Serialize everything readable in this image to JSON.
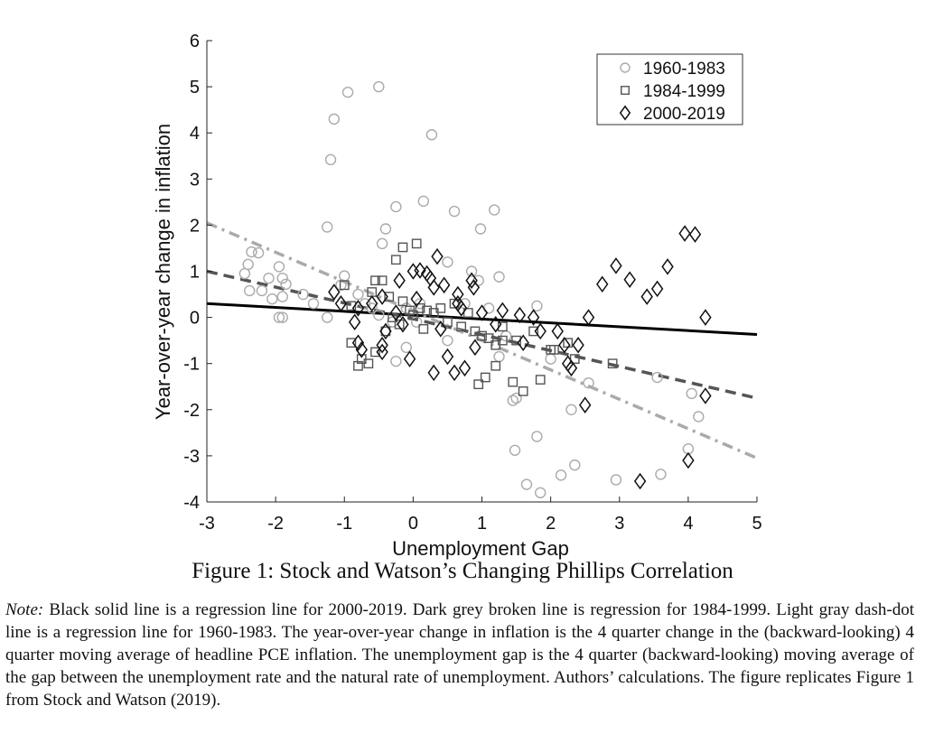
{
  "chart_data": {
    "type": "scatter",
    "title": "",
    "xlabel": "Unemployment Gap",
    "ylabel": "Year-over-year change in inflation",
    "xlim": [
      -3,
      5
    ],
    "ylim": [
      -4,
      6
    ],
    "xticks": [
      "-3",
      "-2",
      "-1",
      "0",
      "1",
      "2",
      "3",
      "4",
      "5"
    ],
    "yticks": [
      "-4",
      "-3",
      "-2",
      "-1",
      "0",
      "1",
      "2",
      "3",
      "4",
      "5",
      "6"
    ],
    "grid": false,
    "legend_position": "top-right",
    "series": [
      {
        "name": "1960-1983",
        "marker": "circle",
        "color": "#aaaaaa",
        "points": [
          [
            -0.5,
            5.0
          ],
          [
            -0.95,
            4.88
          ],
          [
            -1.15,
            4.3
          ],
          [
            -1.2,
            3.42
          ],
          [
            0.27,
            3.96
          ],
          [
            -1.25,
            1.96
          ],
          [
            -0.25,
            2.4
          ],
          [
            0.15,
            2.52
          ],
          [
            0.6,
            2.3
          ],
          [
            1.18,
            2.33
          ],
          [
            0.98,
            1.92
          ],
          [
            -0.4,
            1.92
          ],
          [
            -0.45,
            1.6
          ],
          [
            -2.4,
            1.15
          ],
          [
            -2.35,
            1.42
          ],
          [
            -2.25,
            1.4
          ],
          [
            -1.95,
            1.1
          ],
          [
            -1.9,
            0.85
          ],
          [
            -2.1,
            0.85
          ],
          [
            -2.45,
            0.95
          ],
          [
            -2.2,
            0.58
          ],
          [
            -2.38,
            0.58
          ],
          [
            -1.85,
            0.72
          ],
          [
            -1.9,
            0.45
          ],
          [
            -2.05,
            0.4
          ],
          [
            -1.6,
            0.5
          ],
          [
            -1.45,
            0.3
          ],
          [
            -1.0,
            0.9
          ],
          [
            -1.05,
            0.7
          ],
          [
            -0.8,
            0.5
          ],
          [
            -0.7,
            0.3
          ],
          [
            -1.95,
            0.0
          ],
          [
            -1.9,
            0.0
          ],
          [
            -1.25,
            0.0
          ],
          [
            -0.6,
            0.2
          ],
          [
            -0.5,
            0.05
          ],
          [
            -0.3,
            -0.1
          ],
          [
            -0.1,
            0.2
          ],
          [
            0.05,
            -0.1
          ],
          [
            0.1,
            0.3
          ],
          [
            0.5,
            1.2
          ],
          [
            0.85,
            1.0
          ],
          [
            0.95,
            0.8
          ],
          [
            0.75,
            0.3
          ],
          [
            1.1,
            0.2
          ],
          [
            1.25,
            0.88
          ],
          [
            -0.25,
            -0.95
          ],
          [
            -0.1,
            -0.65
          ],
          [
            0.5,
            -0.5
          ],
          [
            1.35,
            -0.4
          ],
          [
            1.8,
            0.25
          ],
          [
            2.0,
            -0.9
          ],
          [
            1.25,
            -0.85
          ],
          [
            1.45,
            -1.8
          ],
          [
            1.5,
            -1.75
          ],
          [
            1.48,
            -2.88
          ],
          [
            1.8,
            -2.58
          ],
          [
            2.3,
            -2.0
          ],
          [
            2.55,
            -1.42
          ],
          [
            3.55,
            -1.3
          ],
          [
            4.05,
            -1.65
          ],
          [
            4.15,
            -2.15
          ],
          [
            4.0,
            -2.85
          ],
          [
            3.6,
            -3.4
          ],
          [
            2.35,
            -3.2
          ],
          [
            2.15,
            -3.42
          ],
          [
            1.65,
            -3.62
          ],
          [
            1.85,
            -3.8
          ],
          [
            2.95,
            -3.52
          ]
        ]
      },
      {
        "name": "1984-1999",
        "marker": "square",
        "color": "#555555",
        "points": [
          [
            0.05,
            1.6
          ],
          [
            -0.15,
            1.52
          ],
          [
            -0.25,
            1.25
          ],
          [
            -0.55,
            0.8
          ],
          [
            -0.45,
            0.8
          ],
          [
            -0.9,
            0.25
          ],
          [
            -1.0,
            0.7
          ],
          [
            -0.6,
            0.55
          ],
          [
            -0.35,
            0.45
          ],
          [
            -0.15,
            0.35
          ],
          [
            0.1,
            0.2
          ],
          [
            0.3,
            0.1
          ],
          [
            0.5,
            -0.1
          ],
          [
            0.7,
            -0.2
          ],
          [
            0.9,
            -0.3
          ],
          [
            1.1,
            -0.45
          ],
          [
            1.3,
            -0.5
          ],
          [
            1.5,
            -0.5
          ],
          [
            1.75,
            -0.3
          ],
          [
            2.0,
            -0.7
          ],
          [
            2.25,
            -0.55
          ],
          [
            2.9,
            -1.0
          ],
          [
            -0.75,
            -0.9
          ],
          [
            -0.8,
            -1.05
          ],
          [
            -0.65,
            -1.0
          ],
          [
            -0.55,
            -0.75
          ],
          [
            -0.9,
            -0.55
          ],
          [
            -0.4,
            -0.3
          ],
          [
            -0.2,
            -0.15
          ],
          [
            0.0,
            0.05
          ],
          [
            0.2,
            0.15
          ],
          [
            0.4,
            0.2
          ],
          [
            0.6,
            0.3
          ],
          [
            0.8,
            0.1
          ],
          [
            1.0,
            -0.4
          ],
          [
            1.2,
            -0.6
          ],
          [
            1.05,
            -1.3
          ],
          [
            0.95,
            -1.45
          ],
          [
            1.2,
            -1.05
          ],
          [
            1.6,
            -1.6
          ],
          [
            1.45,
            -1.4
          ],
          [
            1.85,
            -1.35
          ],
          [
            2.05,
            -0.7
          ],
          [
            2.35,
            -0.9
          ],
          [
            1.3,
            -0.2
          ],
          [
            0.15,
            -0.25
          ],
          [
            -0.05,
            0.15
          ],
          [
            -0.3,
            0.0
          ]
        ]
      },
      {
        "name": "2000-2019",
        "marker": "diamond",
        "color": "#111111",
        "points": [
          [
            0.0,
            1.0
          ],
          [
            0.1,
            1.02
          ],
          [
            0.2,
            0.95
          ],
          [
            0.35,
            1.32
          ],
          [
            0.25,
            0.85
          ],
          [
            0.45,
            0.7
          ],
          [
            0.65,
            0.5
          ],
          [
            0.85,
            0.8
          ],
          [
            0.88,
            0.65
          ],
          [
            -0.2,
            0.8
          ],
          [
            -0.45,
            0.45
          ],
          [
            -0.6,
            0.3
          ],
          [
            -0.8,
            0.2
          ],
          [
            -1.15,
            0.55
          ],
          [
            -1.05,
            0.3
          ],
          [
            -0.85,
            -0.1
          ],
          [
            -0.75,
            -0.7
          ],
          [
            -0.8,
            -0.55
          ],
          [
            -0.45,
            -0.6
          ],
          [
            -0.45,
            -0.75
          ],
          [
            -0.4,
            -0.3
          ],
          [
            -0.15,
            -0.15
          ],
          [
            -0.05,
            -0.9
          ],
          [
            0.3,
            -1.2
          ],
          [
            0.5,
            -0.85
          ],
          [
            0.6,
            -1.2
          ],
          [
            0.75,
            -1.1
          ],
          [
            0.9,
            -0.65
          ],
          [
            1.0,
            0.1
          ],
          [
            1.2,
            -0.15
          ],
          [
            1.3,
            0.15
          ],
          [
            1.55,
            0.05
          ],
          [
            1.75,
            0.0
          ],
          [
            1.85,
            -0.3
          ],
          [
            2.1,
            -0.3
          ],
          [
            2.25,
            -1.0
          ],
          [
            2.3,
            -1.1
          ],
          [
            2.4,
            -0.6
          ],
          [
            2.5,
            -1.9
          ],
          [
            2.55,
            0.0
          ],
          [
            2.75,
            0.72
          ],
          [
            2.95,
            1.12
          ],
          [
            3.15,
            0.82
          ],
          [
            3.4,
            0.45
          ],
          [
            3.55,
            0.62
          ],
          [
            3.7,
            1.1
          ],
          [
            3.95,
            1.82
          ],
          [
            4.1,
            1.8
          ],
          [
            4.25,
            0.0
          ],
          [
            4.25,
            -1.7
          ],
          [
            4.0,
            -3.1
          ],
          [
            3.3,
            -3.55
          ],
          [
            1.6,
            -0.55
          ],
          [
            2.2,
            -0.6
          ],
          [
            0.65,
            0.3
          ],
          [
            0.7,
            0.2
          ],
          [
            0.05,
            0.4
          ],
          [
            -0.25,
            0.1
          ],
          [
            0.3,
            0.65
          ],
          [
            0.4,
            -0.25
          ]
        ]
      }
    ],
    "regression_lines": [
      {
        "period": "2000-2019",
        "style": "solid",
        "color": "#000000",
        "x": [
          -3,
          5
        ],
        "y": [
          0.3,
          -0.37
        ]
      },
      {
        "period": "1984-1999",
        "style": "dashed",
        "color": "#555555",
        "x": [
          -3,
          5
        ],
        "y": [
          1.0,
          -1.75
        ]
      },
      {
        "period": "1960-1983",
        "style": "dash-dot",
        "color": "#aaaaaa",
        "x": [
          -3,
          5
        ],
        "y": [
          2.05,
          -3.05
        ]
      }
    ]
  },
  "caption": "Figure 1: Stock and Watson’s Changing Phillips Correlation",
  "note": {
    "label": "Note:",
    "text": " Black solid line is a regression line for 2000-2019. Dark grey broken line is regression for 1984-1999. Light gray dash-dot line is a regression line for 1960-1983. The year-over-year change in inflation is the 4 quarter change in the (backward-looking) 4 quarter moving average of headline PCE inflation. The unemployment gap is the 4 quarter (backward-looking) moving average of the gap between the unemployment rate and the natural rate of unemployment. Authors’ calculations. The figure replicates Figure 1 from Stock and Watson (2019)."
  }
}
